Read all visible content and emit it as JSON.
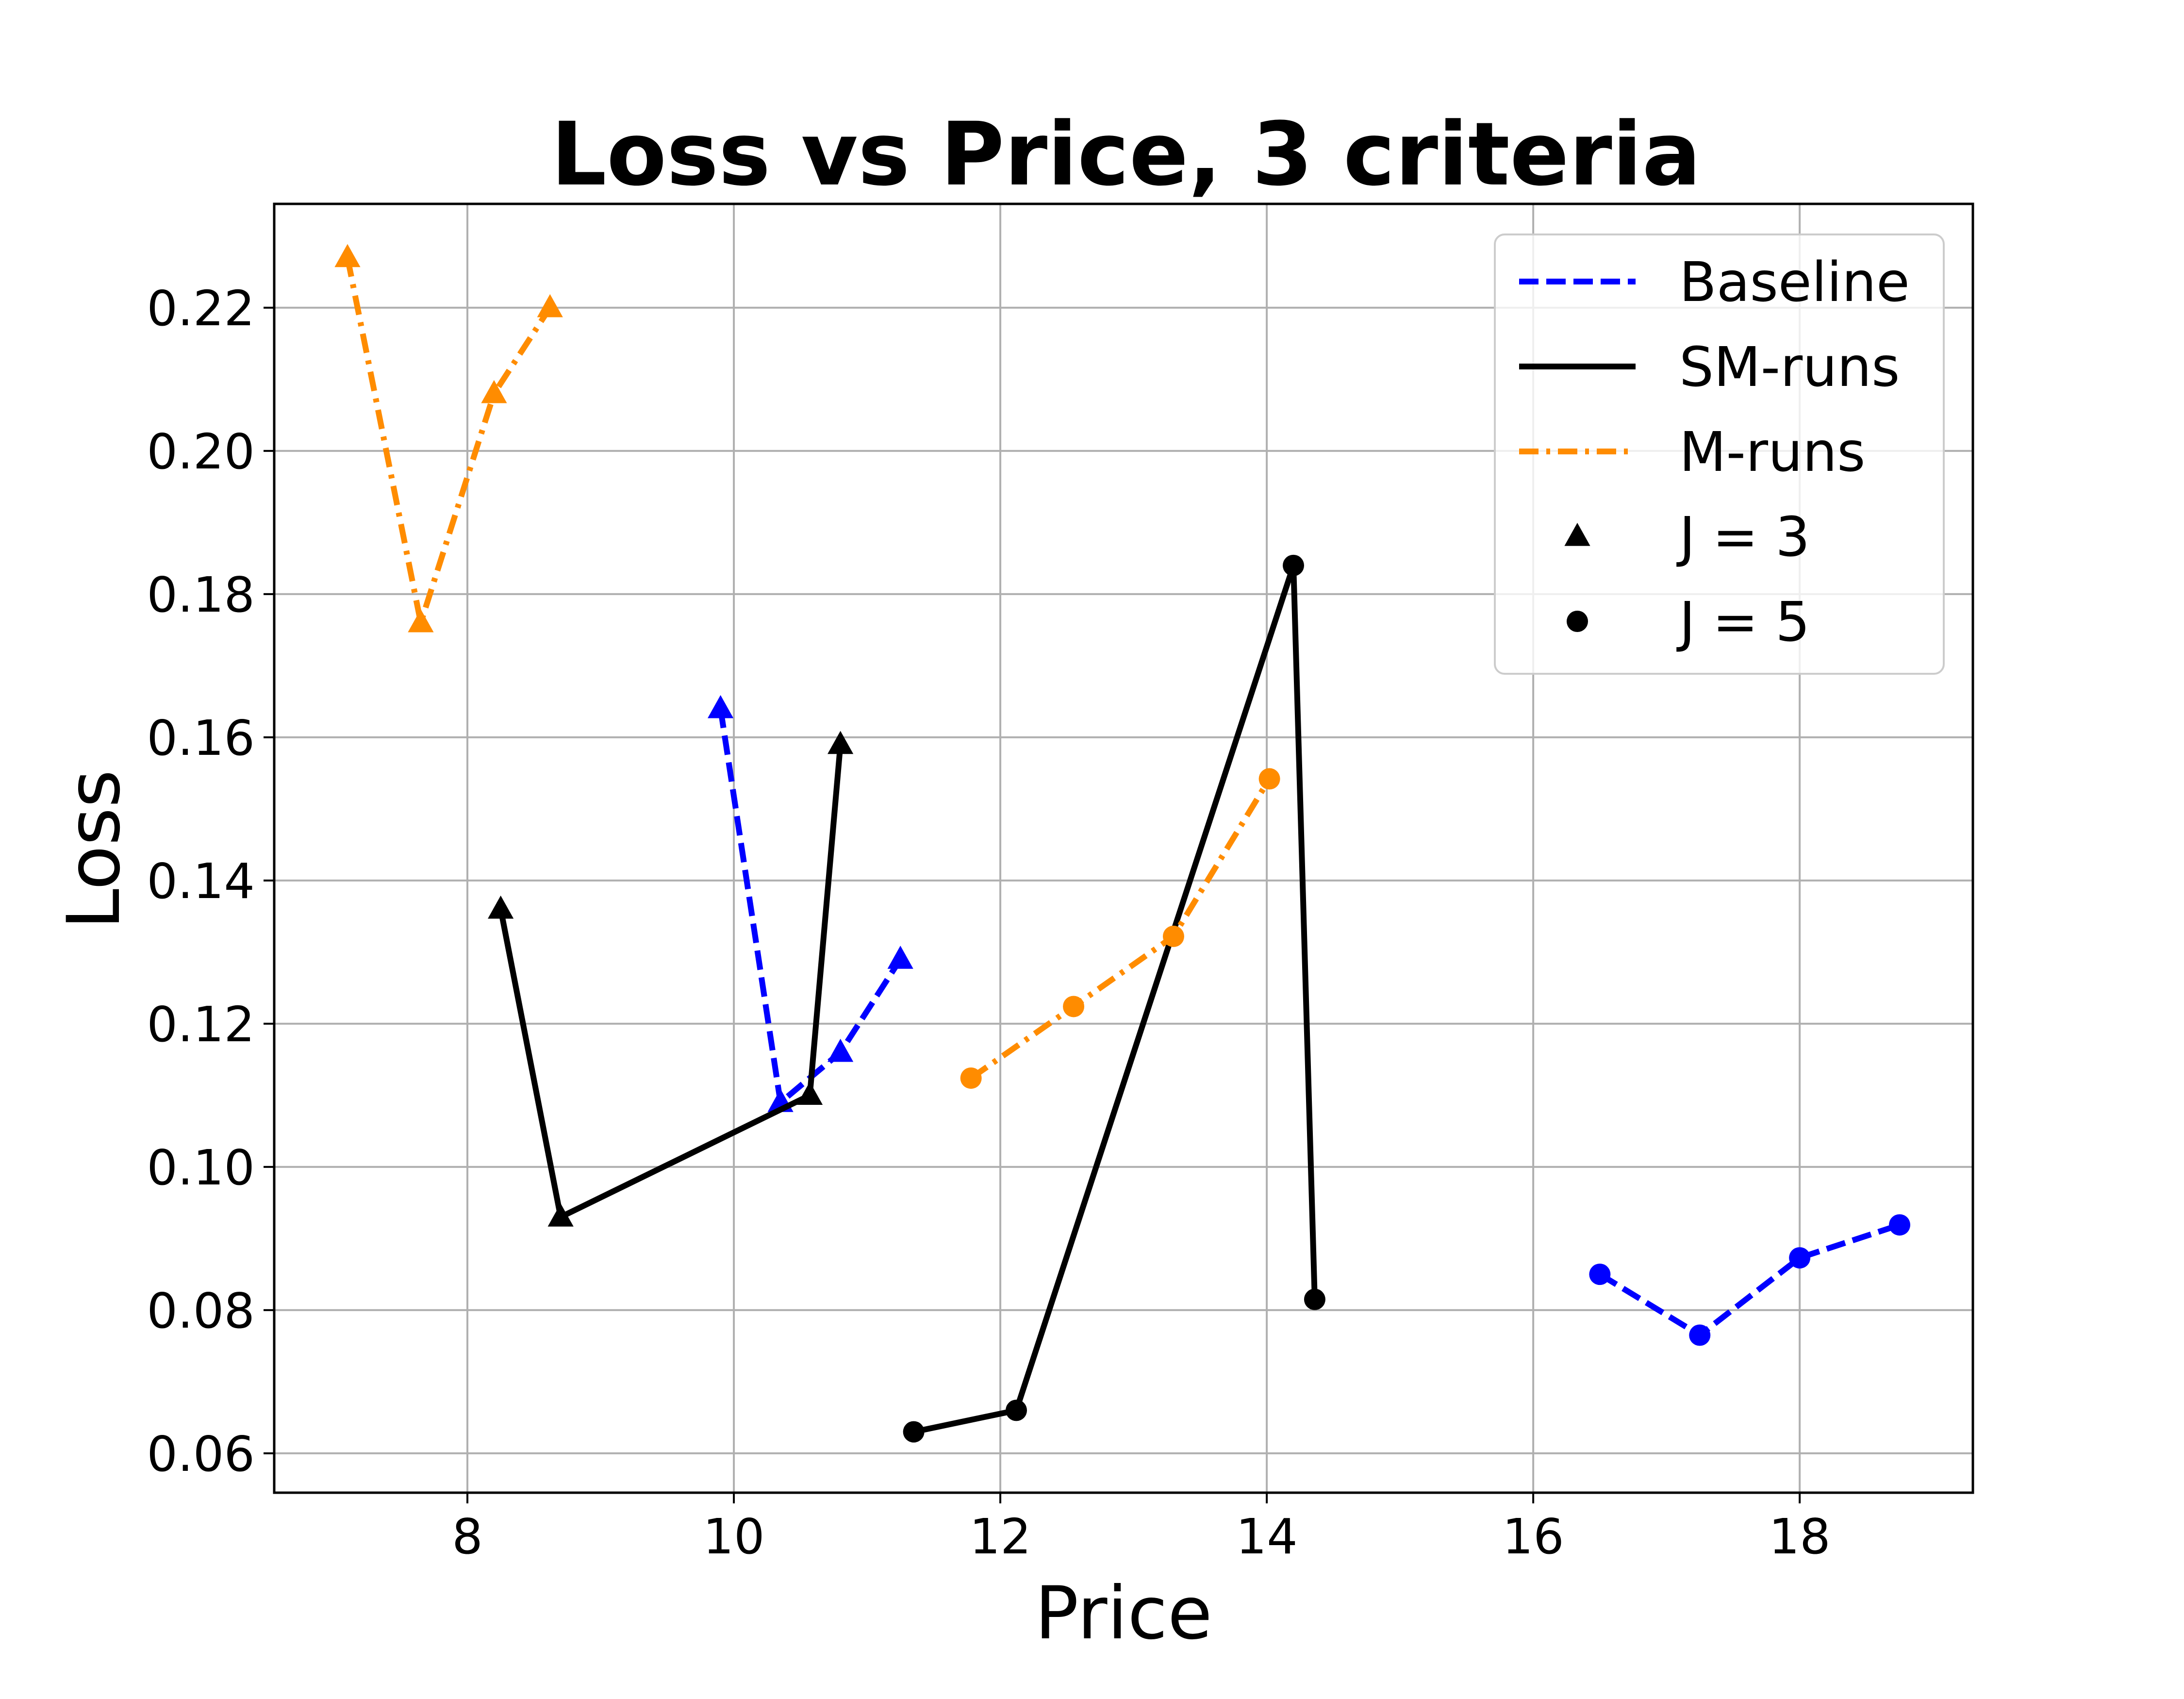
{
  "chart_data": {
    "type": "line",
    "title": "Loss vs Price, 3 criteria",
    "xlabel": "Price",
    "ylabel": "Loss",
    "xlim": [
      6.55,
      19.3
    ],
    "ylim": [
      0.0545,
      0.2345
    ],
    "xticks": [
      8,
      10,
      12,
      14,
      16,
      18
    ],
    "yticks": [
      0.06,
      0.08,
      0.1,
      0.12,
      0.14,
      0.16,
      0.18,
      0.2,
      0.22
    ],
    "xtick_labels": [
      "8",
      "10",
      "12",
      "14",
      "16",
      "18"
    ],
    "ytick_labels": [
      "0.06",
      "0.08",
      "0.10",
      "0.12",
      "0.14",
      "0.16",
      "0.18",
      "0.20",
      "0.22"
    ],
    "grid": true,
    "legend_position": "top-right",
    "legend": [
      {
        "label": "Baseline",
        "kind": "line",
        "color": "#0000ff",
        "dash": "dashed"
      },
      {
        "label": "SM-runs",
        "kind": "line",
        "color": "#000000",
        "dash": "solid"
      },
      {
        "label": "M-runs",
        "kind": "line",
        "color": "#ff8c00",
        "dash": "dashdot"
      },
      {
        "label": "J = 3",
        "kind": "marker",
        "marker": "triangle",
        "color": "#000000"
      },
      {
        "label": "J = 5",
        "kind": "marker",
        "marker": "circle",
        "color": "#000000"
      }
    ],
    "series": [
      {
        "criterion": "Baseline",
        "marker": "triangle",
        "color": "#0000ff",
        "dash": "dashed",
        "x": [
          9.9,
          10.35,
          10.8,
          11.25
        ],
        "y": [
          0.164,
          0.109,
          0.116,
          0.129
        ]
      },
      {
        "criterion": "SM-runs",
        "marker": "triangle",
        "color": "#000000",
        "dash": "solid",
        "x": [
          8.25,
          8.7,
          10.57,
          10.8
        ],
        "y": [
          0.136,
          0.093,
          0.11,
          0.159
        ]
      },
      {
        "criterion": "M-runs",
        "marker": "triangle",
        "color": "#ff8c00",
        "dash": "dashdot",
        "x": [
          7.1,
          7.65,
          8.2,
          8.62
        ],
        "y": [
          0.227,
          0.176,
          0.208,
          0.22
        ]
      },
      {
        "criterion": "Baseline",
        "marker": "circle",
        "color": "#0000ff",
        "dash": "dashed",
        "x": [
          16.5,
          17.25,
          18.0,
          18.75
        ],
        "y": [
          0.085,
          0.0765,
          0.0873,
          0.0919
        ]
      },
      {
        "criterion": "SM-runs",
        "marker": "circle",
        "color": "#000000",
        "dash": "solid",
        "x": [
          11.35,
          12.12,
          14.2,
          14.36
        ],
        "y": [
          0.063,
          0.066,
          0.184,
          0.0815
        ]
      },
      {
        "criterion": "M-runs",
        "marker": "circle",
        "color": "#ff8c00",
        "dash": "dashdot",
        "x": [
          11.78,
          12.55,
          13.3,
          14.02
        ],
        "y": [
          0.1124,
          0.1224,
          0.1322,
          0.1542
        ]
      }
    ]
  }
}
